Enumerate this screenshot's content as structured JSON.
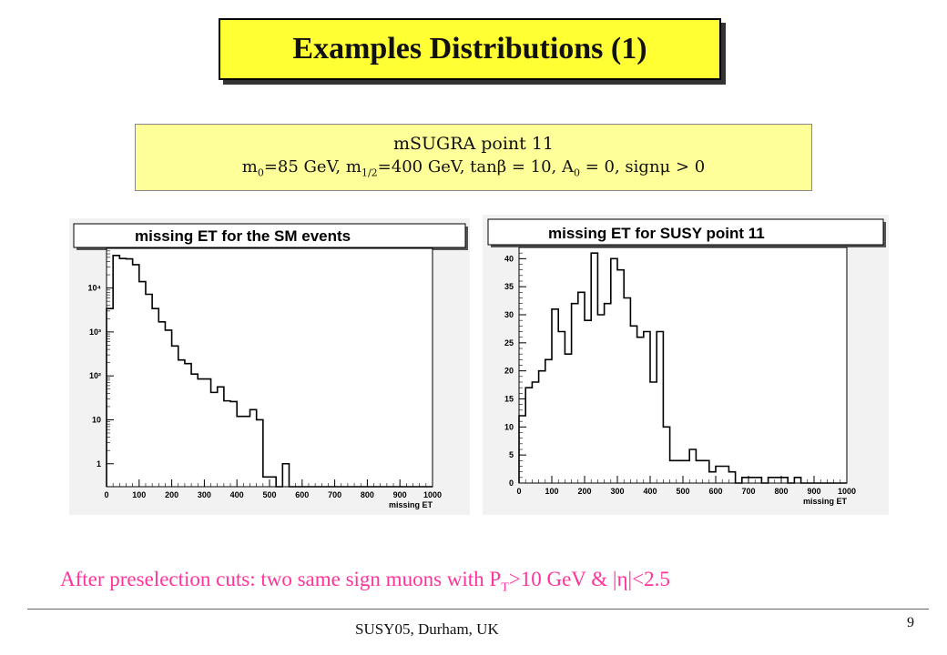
{
  "slide": {
    "title": "Examples Distributions (1)",
    "point_line1": "mSUGRA point 11",
    "caption_prefix": "After preselection cuts:  two same sign muons with P",
    "caption_sub": "T",
    "caption_suffix": ">10 GeV  & |η|<2.5",
    "footer": "SUSY05, Durham, UK",
    "page_number": "9",
    "colors": {
      "title_bg": "#ffff33",
      "param_bg": "#ffff99",
      "caption": "#ff3399"
    }
  },
  "params": {
    "m0_sym": "m",
    "m0_sub": "0",
    "m0_val": "=85 GeV, ",
    "mh_sym": "m",
    "mh_sub": "1/2",
    "mh_val": "=400 GeV, tanβ = 10, ",
    "a0_sym": "A",
    "a0_sub": "0",
    "a0_val": " = 0, signμ > 0"
  },
  "chart_data": [
    {
      "type": "histogram",
      "title": "missing ET for the SM events",
      "xlabel": "missing ET",
      "ylabel": "",
      "log_y": true,
      "xlim": [
        0,
        1000
      ],
      "ylim": [
        0.3,
        80000
      ],
      "x_ticks": [
        0,
        100,
        200,
        300,
        400,
        500,
        600,
        700,
        800,
        900,
        1000
      ],
      "y_ticks": [
        {
          "value": 1,
          "label": "1"
        },
        {
          "value": 10,
          "label": "10"
        },
        {
          "value": 100,
          "label": "10²"
        },
        {
          "value": 1000,
          "label": "10³"
        },
        {
          "value": 10000,
          "label": "10⁴"
        }
      ],
      "bin_width": 20,
      "values": [
        3400,
        55000,
        47000,
        46000,
        34000,
        14000,
        7200,
        3400,
        1700,
        1100,
        480,
        230,
        190,
        110,
        85,
        85,
        42,
        56,
        27,
        26,
        12,
        12,
        17,
        10,
        0.5,
        0.5,
        0,
        1,
        0,
        0,
        0,
        0,
        0,
        0,
        0,
        0,
        0,
        0,
        0,
        0,
        0,
        0,
        0,
        0,
        0,
        0,
        0,
        0,
        0,
        0
      ],
      "grid": false,
      "legend": "none"
    },
    {
      "type": "histogram",
      "title": "missing ET for SUSY point 11",
      "xlabel": "missing ET",
      "ylabel": "",
      "log_y": false,
      "xlim": [
        0,
        1000
      ],
      "ylim": [
        0,
        42
      ],
      "x_ticks": [
        0,
        100,
        200,
        300,
        400,
        500,
        600,
        700,
        800,
        900,
        1000
      ],
      "y_ticks": [
        {
          "value": 0,
          "label": "0"
        },
        {
          "value": 5,
          "label": "5"
        },
        {
          "value": 10,
          "label": "10"
        },
        {
          "value": 15,
          "label": "15"
        },
        {
          "value": 20,
          "label": "20"
        },
        {
          "value": 25,
          "label": "25"
        },
        {
          "value": 30,
          "label": "30"
        },
        {
          "value": 35,
          "label": "35"
        },
        {
          "value": 40,
          "label": "40"
        }
      ],
      "bin_width": 20,
      "values": [
        12,
        17,
        18,
        20,
        22,
        31,
        27,
        23,
        32,
        34,
        29,
        41,
        30,
        32,
        40,
        38,
        33,
        28,
        26,
        27,
        18,
        27,
        10,
        4,
        4,
        4,
        6,
        4,
        4,
        2,
        3,
        3,
        2,
        0,
        1,
        1,
        1,
        0,
        1,
        1,
        1,
        0,
        1,
        0,
        0,
        0,
        0,
        0,
        0,
        0
      ],
      "grid": false,
      "legend": "none"
    }
  ]
}
